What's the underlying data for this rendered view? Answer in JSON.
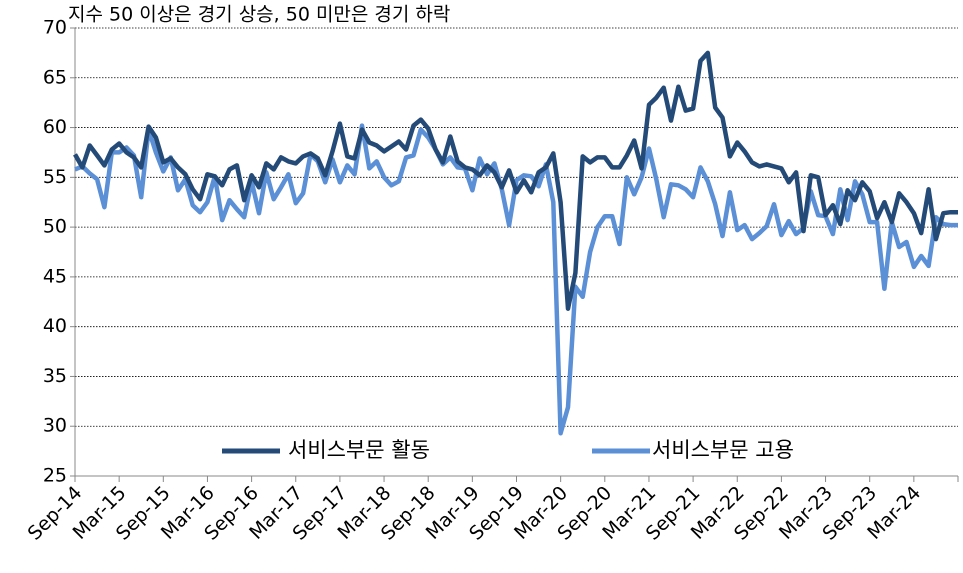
{
  "chart_data": {
    "type": "line",
    "title": "지수 50 이상은 경기 상승, 50 미만은 경기 하락",
    "categories": [
      "Sep-14",
      null,
      null,
      null,
      null,
      null,
      "Mar-15",
      null,
      null,
      null,
      null,
      null,
      "Sep-15",
      null,
      null,
      null,
      null,
      null,
      "Mar-16",
      null,
      null,
      null,
      null,
      null,
      "Sep-16",
      null,
      null,
      null,
      null,
      null,
      "Mar-17",
      null,
      null,
      null,
      null,
      null,
      "Sep-17",
      null,
      null,
      null,
      null,
      null,
      "Mar-18",
      null,
      null,
      null,
      null,
      null,
      "Sep-18",
      null,
      null,
      null,
      null,
      null,
      "Mar-19",
      null,
      null,
      null,
      null,
      null,
      "Sep-19",
      null,
      null,
      null,
      null,
      null,
      "Mar-20",
      null,
      null,
      null,
      null,
      null,
      "Sep-20",
      null,
      null,
      null,
      null,
      null,
      "Mar-21",
      null,
      null,
      null,
      null,
      null,
      "Sep-21",
      null,
      null,
      null,
      null,
      null,
      "Mar-22",
      null,
      null,
      null,
      null,
      null,
      "Sep-22",
      null,
      null,
      null,
      null,
      null,
      "Mar-23",
      null,
      null,
      null,
      null,
      null,
      "Sep-23",
      null,
      null,
      null,
      null,
      null,
      "Mar-24",
      null,
      null,
      null,
      null,
      null,
      null
    ],
    "series": [
      {
        "name": "서비스부문 활동",
        "color": "#244a78",
        "values": [
          57.3,
          56,
          58.2,
          57.2,
          56.2,
          57.8,
          58.4,
          57.5,
          57,
          56,
          60.1,
          59,
          56.5,
          56.9,
          56,
          55.3,
          53.8,
          52.8,
          55.3,
          55.1,
          54.2,
          55.8,
          56.2,
          52.7,
          55.2,
          54,
          56.4,
          55.8,
          57,
          56.6,
          56.4,
          57.1,
          57.4,
          56.9,
          55.2,
          57.6,
          60.4,
          57.1,
          56.9,
          59.8,
          58.5,
          58.2,
          57.6,
          58.1,
          58.6,
          57.8,
          60.2,
          60.8,
          59.9,
          57.8,
          56.5,
          59.1,
          56.6,
          56,
          55.8,
          55.2,
          56.2,
          55.5,
          54,
          55.7,
          53.5,
          54.7,
          53.5,
          55.5,
          56,
          57.4,
          52.5,
          41.8,
          45.4,
          57.1,
          56.5,
          57,
          57,
          56,
          56,
          57.2,
          58.7,
          55.9,
          62.3,
          63,
          64,
          60.7,
          64.1,
          61.7,
          61.9,
          66.7,
          67.5,
          62,
          61,
          57.1,
          58.5,
          57.6,
          56.5,
          56.1,
          56.3,
          56.1,
          55.9,
          54.5,
          55.5,
          49.6,
          55.2,
          55,
          51.2,
          52.2,
          50.3,
          53.7,
          52.7,
          54.5,
          53.6,
          50.9,
          52.5,
          50.5,
          53.4,
          52.5,
          51.4,
          49.4,
          53.8,
          48.8,
          51.4,
          51.5,
          51.5
        ]
      },
      {
        "name": "서비스부문 고용",
        "color": "#5b8fd6",
        "values": [
          55.8,
          56.1,
          55.4,
          54.8,
          52,
          57.5,
          57.5,
          58,
          57.2,
          53,
          59.8,
          57.5,
          55.6,
          57,
          53.7,
          54.8,
          52.2,
          51.5,
          52.5,
          55.1,
          50.7,
          52.7,
          51.8,
          51,
          54.6,
          51.4,
          55.5,
          52.8,
          54,
          55.3,
          52.4,
          53.4,
          57.3,
          56.6,
          54.5,
          56.8,
          54.5,
          56.2,
          55.3,
          60.2,
          55.9,
          56.6,
          55,
          54.2,
          54.6,
          57,
          57.2,
          59.8,
          59,
          57.8,
          56.3,
          57,
          56,
          55.9,
          53.7,
          56.9,
          55.3,
          56.4,
          53.8,
          50.2,
          54.7,
          55.2,
          55.1,
          54.1,
          56.3,
          52.5,
          29.3,
          31.9,
          44,
          43,
          47.5,
          50,
          51.1,
          51.1,
          48.3,
          55,
          53.3,
          55,
          57.9,
          54.8,
          51,
          54.3,
          54.2,
          53.8,
          53,
          56,
          54.6,
          52.3,
          49.1,
          53.5,
          49.7,
          50.2,
          48.8,
          49.4,
          50.1,
          52.3,
          49.2,
          50.6,
          49.3,
          49.9,
          53.6,
          51.2,
          51.1,
          49.3,
          53.8,
          50.7,
          54.6,
          53.3,
          50.5,
          50.5,
          43.8,
          50.5,
          48,
          48.5,
          46,
          47.1,
          46.1,
          51,
          50.3,
          50.2,
          50.2
        ]
      }
    ],
    "ylim": [
      25,
      70
    ],
    "yticks": [
      25,
      30,
      35,
      40,
      45,
      50,
      55,
      60,
      65,
      70
    ],
    "grid": true
  }
}
